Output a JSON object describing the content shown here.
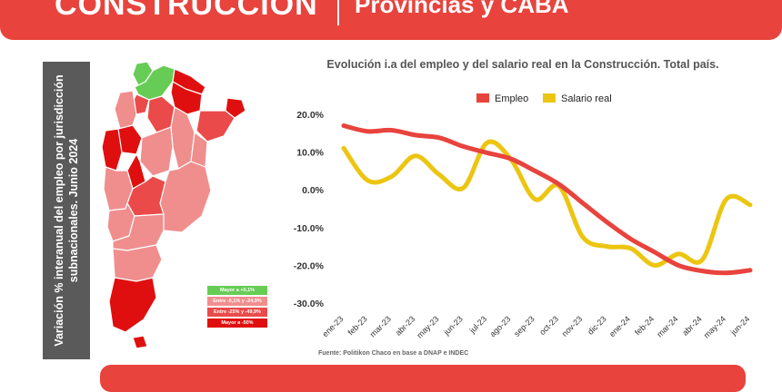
{
  "header": {
    "title": "CONSTRUCCIÓN",
    "subtitle": "Provincias y CABA"
  },
  "side_label": "Variación % interanual del empleo por jurisdicción subnacionales. Junio 2024",
  "map_legend": [
    {
      "label": "Mayor a +0,1%",
      "color": "#66cc55"
    },
    {
      "label": "Entre -0,1% y -24,9%",
      "color": "#f08e8e"
    },
    {
      "label": "Entre -25% y -49,9%",
      "color": "#ea4a4a"
    },
    {
      "label": "Mayor a -50%",
      "color": "#e00f0f"
    }
  ],
  "source": "Fuente: Politikon Chaco en base a DNAP e INDEC",
  "chart_data": {
    "type": "line",
    "title": "Evolución i.a del empleo y del salario real en la Construcción. Total país.",
    "xlabel": "",
    "ylabel": "",
    "categories": [
      "ene-23",
      "feb-23",
      "mar-23",
      "abr-23",
      "may-23",
      "jun-23",
      "jul-23",
      "ago-23",
      "sep-23",
      "oct-23",
      "nov-23",
      "dic-23",
      "ene-24",
      "feb-24",
      "mar-24",
      "abr-24",
      "may-24",
      "jun-24"
    ],
    "ylim": [
      -30,
      20
    ],
    "yticks": [
      "20.0%",
      "10.0%",
      "0.0%",
      "-10.0%",
      "-20.0%",
      "-30.0%"
    ],
    "legend_position": "top",
    "series": [
      {
        "name": "Empleo",
        "color": "#e8433d",
        "values": [
          17,
          15.5,
          15.8,
          14.5,
          13.8,
          11.5,
          9.8,
          8.2,
          5,
          1.5,
          -3.5,
          -8.5,
          -13,
          -16.5,
          -20,
          -21.5,
          -22,
          -21.3
        ]
      },
      {
        "name": "Salario real",
        "color": "#ecc511",
        "values": [
          11,
          2.5,
          3.5,
          9,
          4,
          0.5,
          12.5,
          8,
          -2.5,
          1,
          -12.5,
          -15,
          -15.5,
          -20,
          -17,
          -18.5,
          -2.5,
          -4
        ]
      }
    ]
  }
}
